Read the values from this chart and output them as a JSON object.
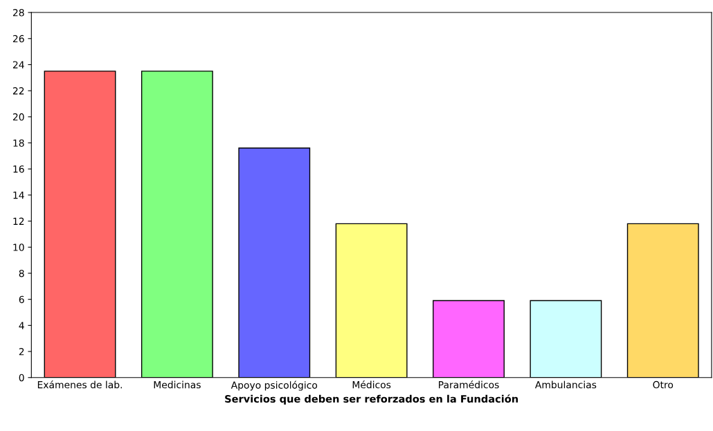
{
  "chart_data": {
    "type": "bar",
    "xlabel": "Servicios que deben ser reforzados en la Fundación",
    "categories": [
      "Exámenes de lab.",
      "Medicinas",
      "Apoyo psicológico",
      "Médicos",
      "Paramédicos",
      "Ambulancias",
      "Otro"
    ],
    "values": [
      23.5,
      23.5,
      17.6,
      11.8,
      5.9,
      5.9,
      11.8
    ],
    "colors": [
      "#ff6666",
      "#80ff80",
      "#6666ff",
      "#ffff80",
      "#ff66ff",
      "#ccffff",
      "#ffd966"
    ],
    "ylim": [
      0,
      28
    ],
    "yticks": [
      0,
      2,
      4,
      6,
      8,
      10,
      12,
      14,
      16,
      18,
      20,
      22,
      24,
      26,
      28
    ],
    "grid": false,
    "legend": false
  }
}
